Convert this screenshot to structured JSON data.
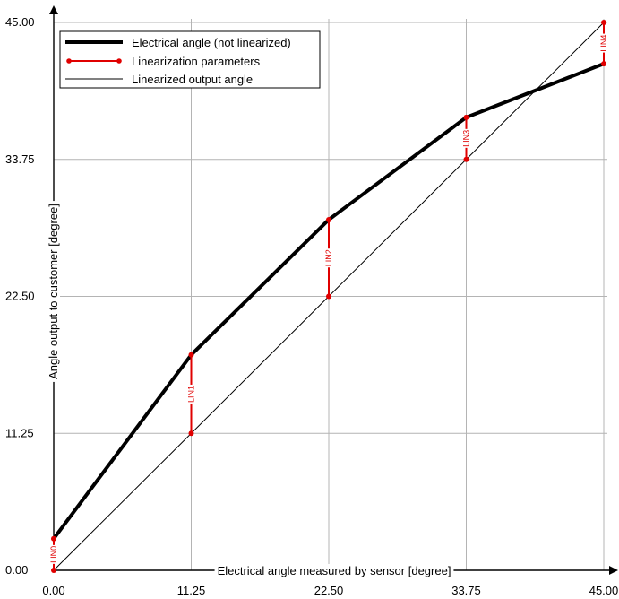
{
  "chart_data": {
    "type": "line",
    "xlabel": "Electrical angle measured by sensor [degree]",
    "ylabel": "Angle output to customer [degree]",
    "xlim": [
      0,
      45
    ],
    "ylim": [
      0,
      45
    ],
    "x_ticks": [
      "0.00",
      "11.25",
      "22.50",
      "33.75",
      "45.00"
    ],
    "y_ticks": [
      "0.00",
      "11.25",
      "22.50",
      "33.75",
      "45.00"
    ],
    "grid": true,
    "legend_position": "top-left",
    "x": [
      0,
      11.25,
      22.5,
      33.75,
      45
    ],
    "series": [
      {
        "name": "Electrical angle (not linearized)",
        "values": [
          2.6,
          17.7,
          28.8,
          37.2,
          41.6
        ],
        "color": "#000000"
      },
      {
        "name": "Linearized output angle",
        "values": [
          0,
          11.25,
          22.5,
          33.75,
          45
        ],
        "color": "#000000"
      }
    ],
    "linearization": {
      "name": "Linearization parameters",
      "color": "#e00000",
      "labels": [
        "LIN0",
        "LIN1",
        "LIN2",
        "LIN3",
        "LIN4"
      ]
    }
  }
}
